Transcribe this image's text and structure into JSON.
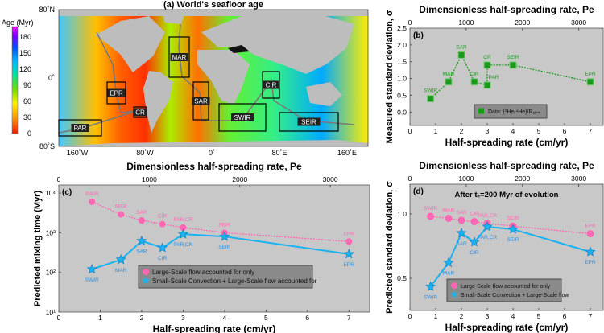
{
  "map": {
    "title": "(a) World's seafloor age",
    "colorbar_label": "Age (Myr)",
    "colorbar_ticks": [
      "0",
      "30",
      "60",
      "90",
      "120",
      "150",
      "180"
    ],
    "lat_labels": [
      "80˚N",
      "0˚",
      "80˚S"
    ],
    "lon_labels": [
      "160˚W",
      "80˚W",
      "0˚",
      "80˚E",
      "160˚E"
    ],
    "regions": [
      "MAR",
      "EPR",
      "CR",
      "PAR",
      "SAR",
      "CIR",
      "SWIR",
      "SEIR"
    ]
  },
  "chart_data": [
    {
      "panel": "(b)",
      "type": "line",
      "top_axis_label": "Dimensionless half-spreading rate, Pe",
      "top_ticks": [
        0,
        1000,
        2000,
        3000
      ],
      "xlabel": "Half-spreading rate (cm/yr)",
      "ylabel": "Measured standard deviation, σ",
      "xlim": [
        0,
        7.5
      ],
      "ylim": [
        -0.4,
        2.5
      ],
      "xticks": [
        0,
        1,
        2,
        3,
        4,
        5,
        6,
        7
      ],
      "yticks": [
        "0.0",
        "0.5",
        "1.0",
        "1.5",
        "2.0",
        "2.5"
      ],
      "series": [
        {
          "name": "Data: (³He/⁴He)/Rₐₜₘ",
          "color": "#1a9a1a",
          "marker": "square",
          "x": [
            0.8,
            1.5,
            2,
            2.5,
            3,
            3,
            4,
            7
          ],
          "y": [
            0.4,
            0.9,
            1.7,
            0.9,
            0.8,
            1.4,
            1.4,
            0.9
          ],
          "labels": [
            "SWIR",
            "MAR",
            "SAR",
            "CIR",
            "PAR",
            "CR",
            "SEIR",
            "EPR"
          ]
        }
      ],
      "legend": "bottom-center"
    },
    {
      "panel": "(c)",
      "type": "line",
      "top_axis_label": "Dimensionless half-spreading rate, Pe",
      "top_ticks": [
        0,
        1000,
        2000,
        3000
      ],
      "xlabel": "Half-spreading rate (cm/yr)",
      "ylabel": "Predicted mixing time (Myr)",
      "xlim": [
        0,
        7.5
      ],
      "ylim": [
        10,
        16000
      ],
      "yscale": "log",
      "xticks": [
        0,
        1,
        2,
        3,
        4,
        5,
        6,
        7
      ],
      "yticks": [
        "10¹",
        "10²",
        "10³",
        "10⁴"
      ],
      "series": [
        {
          "name": "Large-Scale flow accounted for only",
          "color": "#ff66b3",
          "marker": "circle",
          "x": [
            0.8,
            1.5,
            2,
            2.5,
            3,
            4,
            7
          ],
          "y": [
            6000,
            2900,
            2050,
            1650,
            1350,
            1000,
            600
          ],
          "labels": [
            "SWIR",
            "MAR",
            "SAR",
            "CIR",
            "PAR,CR",
            "SEIR",
            "EPR"
          ]
        },
        {
          "name": "Small-Scale Convection + Large-Scale flow accounted for",
          "color": "#1ab2f0",
          "marker": "star",
          "x": [
            0.8,
            1.5,
            2,
            2.5,
            3,
            4,
            7
          ],
          "y": [
            120,
            210,
            620,
            420,
            920,
            800,
            290
          ],
          "labels": [
            "SWIR",
            "MAR",
            "SAR",
            "CIR",
            "PAR,CR",
            "SEIR",
            "EPR"
          ]
        }
      ],
      "legend": "bottom-center"
    },
    {
      "panel": "(d)",
      "type": "line",
      "annotation": "After tₑ=200 Myr of evolution",
      "top_axis_label": "Dimensionless half-spreading rate, Pe",
      "top_ticks": [
        0,
        1000,
        2000,
        3000
      ],
      "xlabel": "Half-spreading rate (cm/yr)",
      "ylabel": "Predicted standard deviation, σ",
      "xlim": [
        0,
        7.5
      ],
      "ylim": [
        0.25,
        1.23
      ],
      "xticks": [
        0,
        1,
        2,
        3,
        4,
        5,
        6,
        7
      ],
      "yticks": [
        "0.5",
        "1.0"
      ],
      "series": [
        {
          "name": "Large-Scale flow accounted for only",
          "color": "#ff66b3",
          "marker": "circle",
          "x": [
            0.8,
            1.5,
            2,
            2.5,
            3,
            4,
            7
          ],
          "y": [
            0.98,
            0.965,
            0.95,
            0.94,
            0.925,
            0.905,
            0.845
          ],
          "labels": [
            "SWIR",
            "MAR",
            "SAR",
            "CIR",
            "PAR,CR",
            "SEIR",
            "EPR"
          ]
        },
        {
          "name": "Small-Scale Convection + Large-Scale flow",
          "color": "#1ab2f0",
          "marker": "star",
          "x": [
            0.8,
            1.5,
            2,
            2.5,
            3,
            4,
            7
          ],
          "y": [
            0.435,
            0.62,
            0.85,
            0.78,
            0.9,
            0.88,
            0.705
          ],
          "labels": [
            "SWIR",
            "MAR",
            "SAR",
            "CIR",
            "PAR,CR",
            "SEIR",
            "EPR"
          ]
        }
      ],
      "legend": "bottom-center"
    }
  ]
}
